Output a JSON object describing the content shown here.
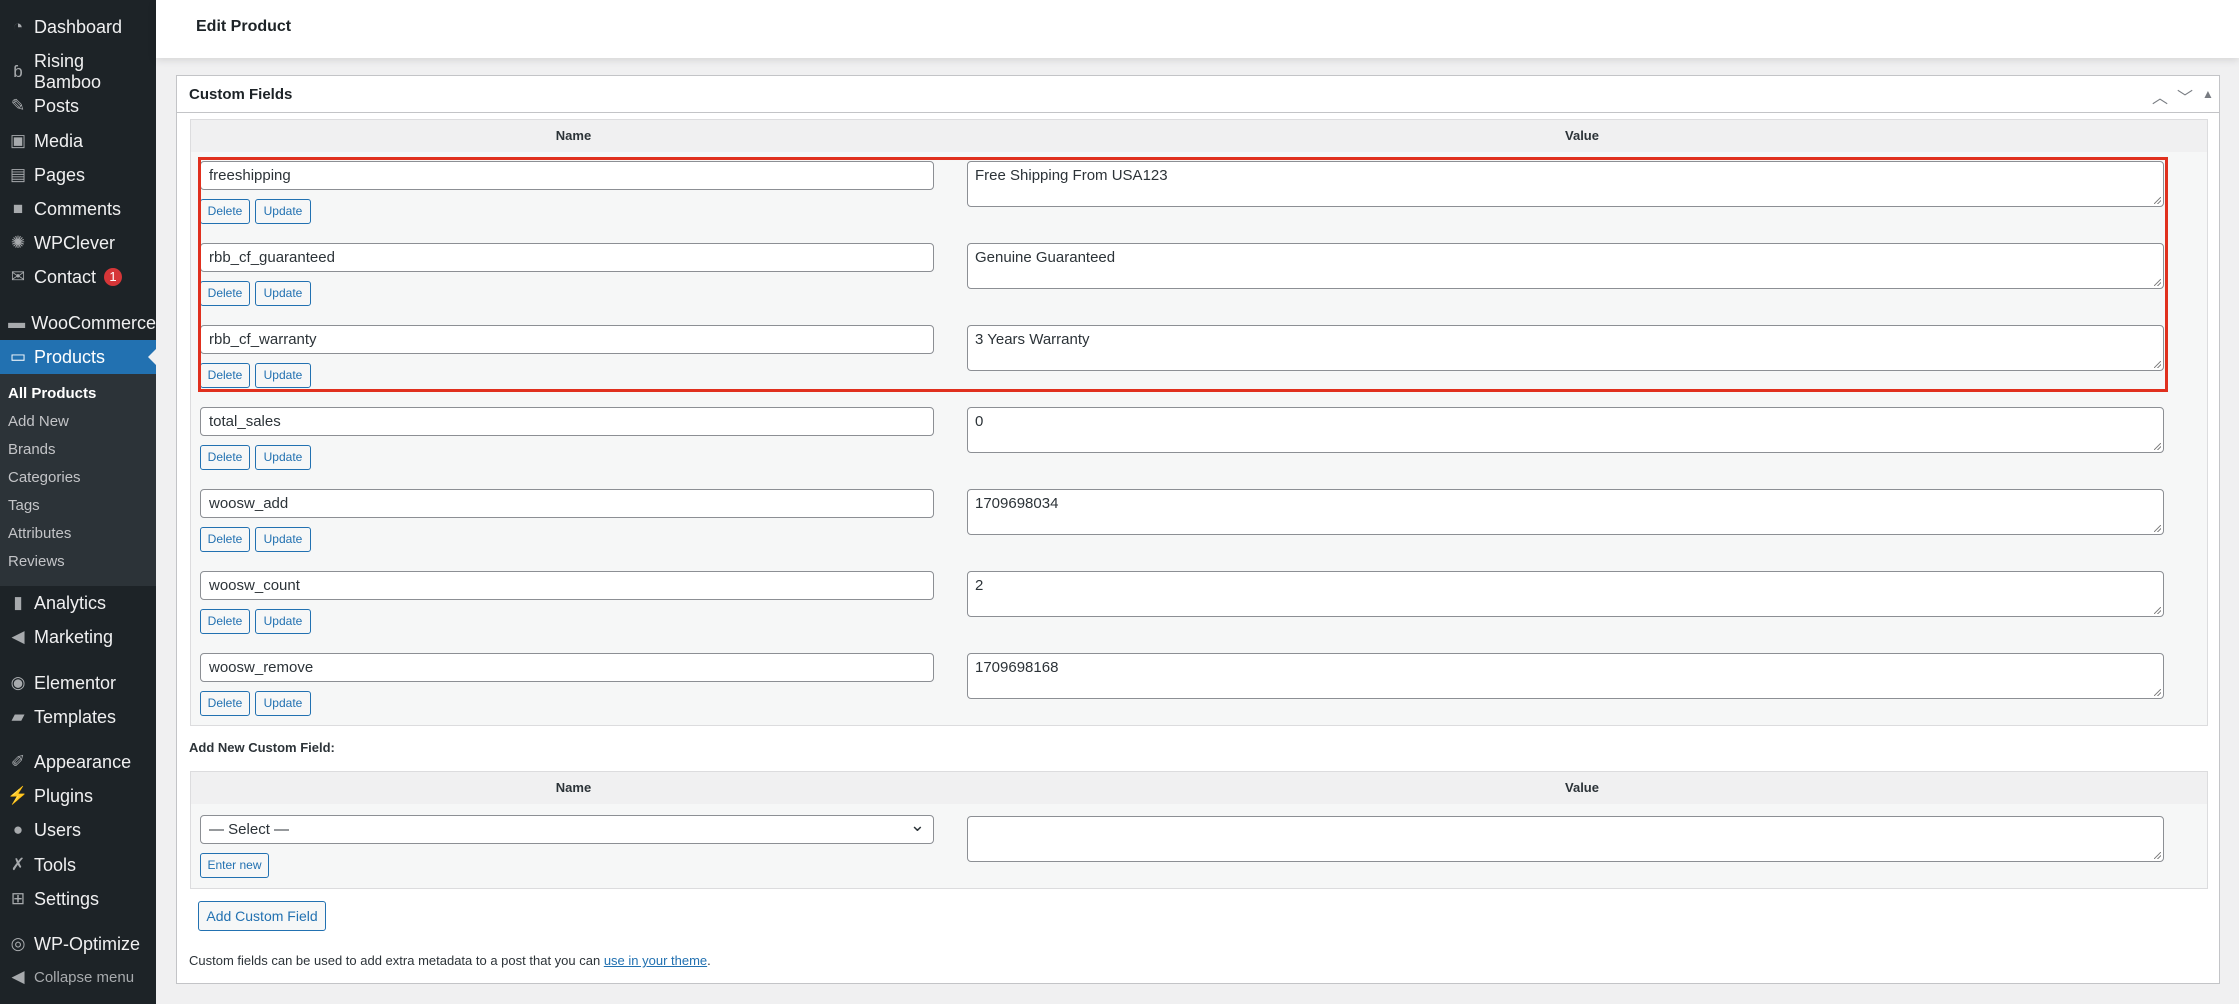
{
  "sidebar": {
    "items": [
      {
        "label": "Dashboard",
        "icon": "dashboard-icon",
        "glyph": "◔"
      },
      {
        "label": "Rising Bamboo",
        "icon": "rising-bamboo-icon",
        "glyph": "ɓ"
      },
      {
        "label": "Posts",
        "icon": "pin-icon",
        "glyph": "✎"
      },
      {
        "label": "Media",
        "icon": "media-icon",
        "glyph": "▣"
      },
      {
        "label": "Pages",
        "icon": "pages-icon",
        "glyph": "▤"
      },
      {
        "label": "Comments",
        "icon": "comment-icon",
        "glyph": "■"
      },
      {
        "label": "WPClever",
        "icon": "wpclever-icon",
        "glyph": "✺"
      },
      {
        "label": "Contact",
        "icon": "mail-icon",
        "glyph": "✉",
        "badge": "1"
      },
      {
        "label": "WooCommerce",
        "icon": "woo-icon",
        "glyph": "▬"
      },
      {
        "label": "Products",
        "icon": "archive-icon",
        "glyph": "▭"
      },
      {
        "label": "Analytics",
        "icon": "bar-chart-icon",
        "glyph": "▮"
      },
      {
        "label": "Marketing",
        "icon": "megaphone-icon",
        "glyph": "◀"
      },
      {
        "label": "Elementor",
        "icon": "elementor-icon",
        "glyph": "◉"
      },
      {
        "label": "Templates",
        "icon": "folder-icon",
        "glyph": "▰"
      },
      {
        "label": "Appearance",
        "icon": "brush-icon",
        "glyph": "✐"
      },
      {
        "label": "Plugins",
        "icon": "plug-icon",
        "glyph": "⚡"
      },
      {
        "label": "Users",
        "icon": "user-icon",
        "glyph": "●"
      },
      {
        "label": "Tools",
        "icon": "wrench-icon",
        "glyph": "✗"
      },
      {
        "label": "Settings",
        "icon": "settings-icon",
        "glyph": "⊞"
      },
      {
        "label": "WP-Optimize",
        "icon": "optimize-icon",
        "glyph": "◎"
      },
      {
        "label": "Collapse menu",
        "icon": "collapse-icon",
        "glyph": "◀"
      }
    ],
    "submenu": [
      "All Products",
      "Add New",
      "Brands",
      "Categories",
      "Tags",
      "Attributes",
      "Reviews"
    ]
  },
  "header": {
    "title": "Edit Product"
  },
  "postbox": {
    "title": "Custom Fields",
    "col_name": "Name",
    "col_value": "Value",
    "delete_label": "Delete",
    "update_label": "Update",
    "rows": [
      {
        "name": "freeshipping",
        "value": "Free Shipping From USA123"
      },
      {
        "name": "rbb_cf_guaranteed",
        "value": "Genuine Guaranteed"
      },
      {
        "name": "rbb_cf_warranty",
        "value": "3 Years Warranty"
      },
      {
        "name": "total_sales",
        "value": "0"
      },
      {
        "name": "woosw_add",
        "value": "1709698034"
      },
      {
        "name": "woosw_count",
        "value": "2"
      },
      {
        "name": "woosw_remove",
        "value": "1709698168"
      }
    ],
    "add_new_label": "Add New Custom Field:",
    "select_value": "— Select —",
    "enter_new_label": "Enter new",
    "new_value": "",
    "add_button": "Add Custom Field",
    "note_text": "Custom fields can be used to add extra metadata to a post that you can ",
    "note_link": "use in your theme",
    "note_end": "."
  },
  "colors": {
    "accent": "#2271b1",
    "highlight": "#e0301e",
    "sidebar": "#1d2327"
  }
}
